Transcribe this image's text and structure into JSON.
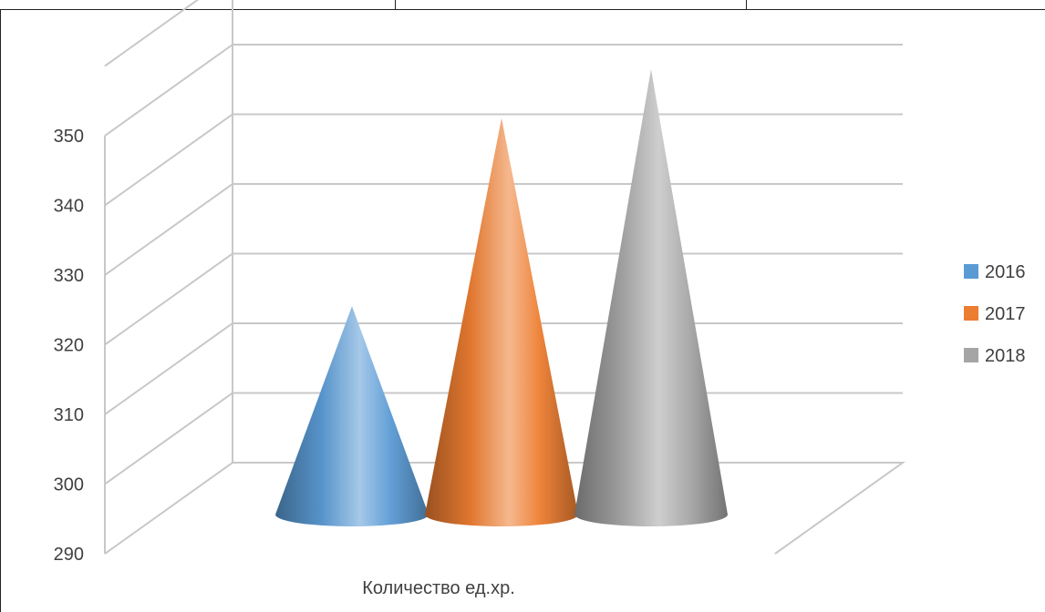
{
  "chart_data": {
    "type": "bar",
    "style": "3d-cone",
    "categories": [
      "Количество ед.хр."
    ],
    "series": [
      {
        "name": "2016",
        "values": [
          319
        ],
        "color": "#5B9BD5"
      },
      {
        "name": "2017",
        "values": [
          346
        ],
        "color": "#ED7D31"
      },
      {
        "name": "2018",
        "values": [
          353
        ],
        "color": "#A5A5A5"
      }
    ],
    "yticks": [
      "290",
      "300",
      "310",
      "320",
      "330",
      "340",
      "350"
    ],
    "ylim": [
      290,
      350
    ],
    "grid": true,
    "legend_position": "right"
  }
}
